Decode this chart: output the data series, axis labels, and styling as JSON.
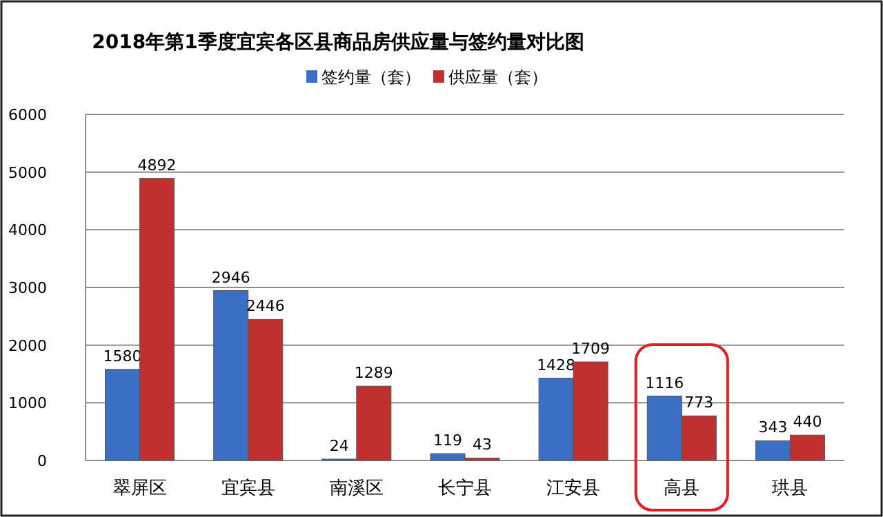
{
  "chart_data": {
    "type": "bar",
    "title": "2018年第1季度宜宾各区县商品房供应量与签约量对比图",
    "categories": [
      "翠屏区",
      "宜宾县",
      "南溪区",
      "长宁县",
      "江安县",
      "高县",
      "珙县"
    ],
    "series": [
      {
        "name": "签约量（套）",
        "color": "#3a6fc4",
        "values": [
          1580,
          2946,
          24,
          119,
          1428,
          1116,
          343
        ]
      },
      {
        "name": "供应量（套）",
        "color": "#c0302f",
        "values": [
          4892,
          2446,
          1289,
          43,
          1709,
          773,
          440
        ]
      }
    ],
    "ylim": [
      0,
      6000
    ],
    "yticks": [
      0,
      1000,
      2000,
      3000,
      4000,
      5000,
      6000
    ],
    "grid": "y",
    "legend": "top",
    "data_labels": true
  }
}
